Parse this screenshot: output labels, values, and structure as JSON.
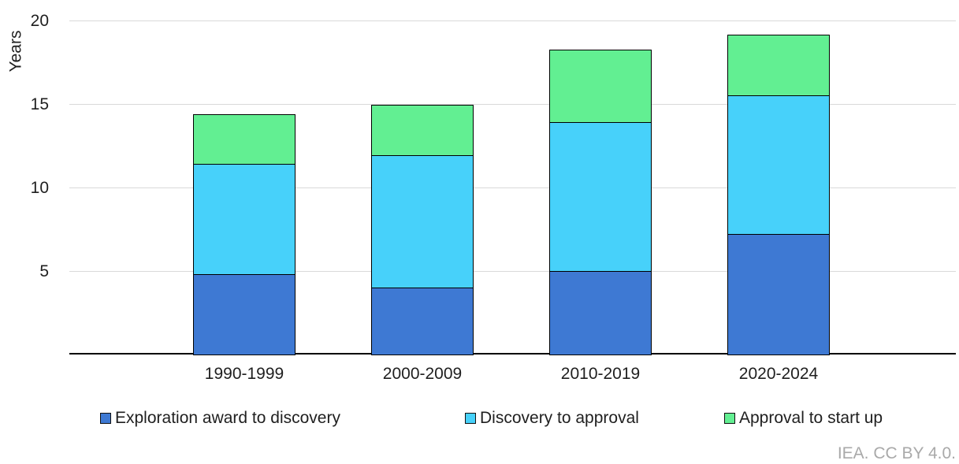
{
  "chart_data": {
    "type": "bar",
    "stacked": true,
    "title": "",
    "ylabel": "Years",
    "categories": [
      "1990-1999",
      "2000-2009",
      "2010-2019",
      "2020-2024"
    ],
    "series": [
      {
        "name": "Exploration award to discovery",
        "color": "#3E79D3",
        "values": [
          4.8,
          4.0,
          5.0,
          7.2
        ]
      },
      {
        "name": "Discovery to approval",
        "color": "#47D1FA",
        "values": [
          6.6,
          7.9,
          8.9,
          8.3
        ]
      },
      {
        "name": "Approval to start up",
        "color": "#62EF92",
        "values": [
          2.9,
          3.0,
          4.3,
          3.6
        ]
      }
    ],
    "totals": [
      14.3,
      14.9,
      18.2,
      19.1
    ],
    "ylim": [
      0,
      20
    ],
    "yticks": [
      5,
      10,
      15,
      20
    ],
    "grid": "horizontal",
    "legend_position": "bottom",
    "gridline_color": "#D9D9D9",
    "axis_line_color": "#000000",
    "bar_border_color": "#000000",
    "text_color": "#1F1F1F",
    "attribution_color": "#A9A9A9"
  },
  "attribution": "IEA. CC BY 4.0."
}
